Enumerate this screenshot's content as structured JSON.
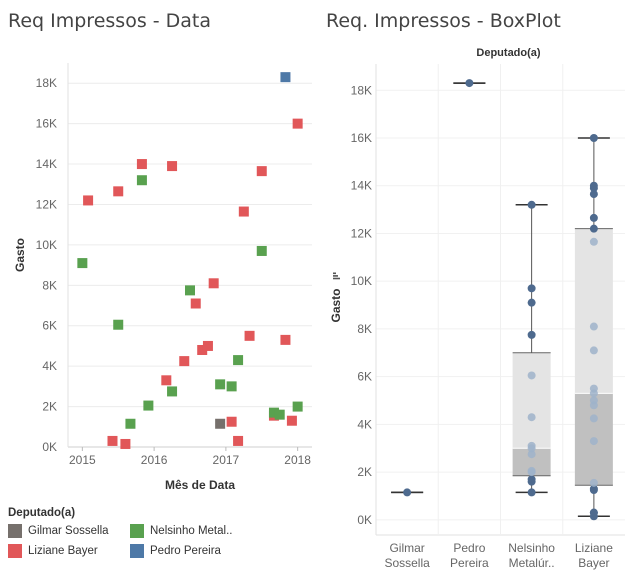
{
  "titles": {
    "scatter": "Req Impressos - Data",
    "boxplot": "Req. Impressos - BoxPlot"
  },
  "chart_data": [
    {
      "type": "scatter",
      "title": "Req Impressos - Data",
      "xlabel": "Mês de Data",
      "ylabel": "Gasto",
      "xlim": [
        2014.8,
        2018.2
      ],
      "ylim": [
        0,
        19000
      ],
      "xticks": [
        {
          "v": 2015,
          "label": "2015"
        },
        {
          "v": 2016,
          "label": "2016"
        },
        {
          "v": 2017,
          "label": "2017"
        },
        {
          "v": 2018,
          "label": "2018"
        }
      ],
      "yticks": [
        {
          "v": 0,
          "label": "0K"
        },
        {
          "v": 2000,
          "label": "2K"
        },
        {
          "v": 4000,
          "label": "4K"
        },
        {
          "v": 6000,
          "label": "6K"
        },
        {
          "v": 8000,
          "label": "8K"
        },
        {
          "v": 10000,
          "label": "10K"
        },
        {
          "v": 12000,
          "label": "12K"
        },
        {
          "v": 14000,
          "label": "14K"
        },
        {
          "v": 16000,
          "label": "16K"
        },
        {
          "v": 18000,
          "label": "18K"
        }
      ],
      "grid": "horizontal",
      "series": [
        {
          "name": "Gilmar Sossella",
          "color": "#76706c",
          "points": [
            [
              2016.92,
              1150
            ]
          ]
        },
        {
          "name": "Liziane Bayer",
          "color": "#e15759",
          "points": [
            [
              2015.08,
              12200
            ],
            [
              2015.42,
              300
            ],
            [
              2015.5,
              12650
            ],
            [
              2015.6,
              150
            ],
            [
              2015.83,
              14000
            ],
            [
              2016.17,
              3300
            ],
            [
              2016.25,
              13900
            ],
            [
              2016.42,
              4250
            ],
            [
              2016.58,
              7100
            ],
            [
              2016.67,
              4800
            ],
            [
              2016.75,
              5000
            ],
            [
              2016.83,
              8100
            ],
            [
              2017.08,
              1250
            ],
            [
              2017.17,
              300
            ],
            [
              2017.25,
              11650
            ],
            [
              2017.33,
              5500
            ],
            [
              2017.5,
              13650
            ],
            [
              2017.67,
              1550
            ],
            [
              2017.83,
              5300
            ],
            [
              2017.92,
              1300
            ],
            [
              2018,
              16000
            ]
          ]
        },
        {
          "name": "Nelsinho Metalúrgico",
          "color": "#59a14f",
          "points": [
            [
              2015,
              9100
            ],
            [
              2015.5,
              6050
            ],
            [
              2015.67,
              1150
            ],
            [
              2015.83,
              13200
            ],
            [
              2015.92,
              2050
            ],
            [
              2016.25,
              2750
            ],
            [
              2016.5,
              7750
            ],
            [
              2016.92,
              3100
            ],
            [
              2017.08,
              3000
            ],
            [
              2017.17,
              4300
            ],
            [
              2017.5,
              9700
            ],
            [
              2017.67,
              1700
            ],
            [
              2017.75,
              1600
            ],
            [
              2018,
              2000
            ]
          ]
        },
        {
          "name": "Pedro Pereira",
          "color": "#4e79a7",
          "points": [
            [
              2017.83,
              18300
            ]
          ]
        }
      ]
    },
    {
      "type": "boxplot",
      "title": "Req. Impressos - BoxPlot",
      "header": "Deputado(a)",
      "ylabel": "Gasto",
      "ylim": [
        -300,
        19100
      ],
      "yticks": [
        {
          "v": 0,
          "label": "0K"
        },
        {
          "v": 2000,
          "label": "2K"
        },
        {
          "v": 4000,
          "label": "4K"
        },
        {
          "v": 6000,
          "label": "6K"
        },
        {
          "v": 8000,
          "label": "8K"
        },
        {
          "v": 10000,
          "label": "10K"
        },
        {
          "v": 12000,
          "label": "12K"
        },
        {
          "v": 14000,
          "label": "14K"
        },
        {
          "v": 16000,
          "label": "16K"
        },
        {
          "v": 18000,
          "label": "18K"
        }
      ],
      "categories": [
        {
          "label1": "Gilmar",
          "label2": "Sossella",
          "min": 1150,
          "q1": 1150,
          "median": 1150,
          "q3": 1150,
          "max": 1150,
          "points": [
            1150
          ]
        },
        {
          "label1": "Pedro",
          "label2": "Pereira",
          "min": 18300,
          "q1": 18300,
          "median": 18300,
          "q3": 18300,
          "max": 18300,
          "points": [
            18300
          ]
        },
        {
          "label1": "Nelsinho",
          "label2": "Metalúr..",
          "min": 1150,
          "q1": 1850,
          "median": 3000,
          "q3": 7000,
          "max": 13200,
          "points": [
            1150,
            1600,
            1700,
            2000,
            2050,
            2750,
            3000,
            3100,
            4300,
            6050,
            7750,
            9100,
            9700,
            13200
          ]
        },
        {
          "label1": "Liziane",
          "label2": "Bayer",
          "min": 150,
          "q1": 1450,
          "median": 5300,
          "q3": 12200,
          "max": 16000,
          "points": [
            150,
            300,
            300,
            1250,
            1300,
            1550,
            3300,
            4250,
            4800,
            5000,
            5300,
            5500,
            7100,
            8100,
            11650,
            12200,
            12650,
            13650,
            13900,
            14000,
            16000
          ]
        }
      ]
    }
  ],
  "legend": {
    "title": "Deputado(a)",
    "items": [
      {
        "label": "Gilmar Sossella",
        "color": "#76706c"
      },
      {
        "label": "Nelsinho Metal..",
        "color": "#59a14f"
      },
      {
        "label": "Liziane Bayer",
        "color": "#e15759"
      },
      {
        "label": "Pedro Pereira",
        "color": "#4e79a7"
      }
    ]
  }
}
